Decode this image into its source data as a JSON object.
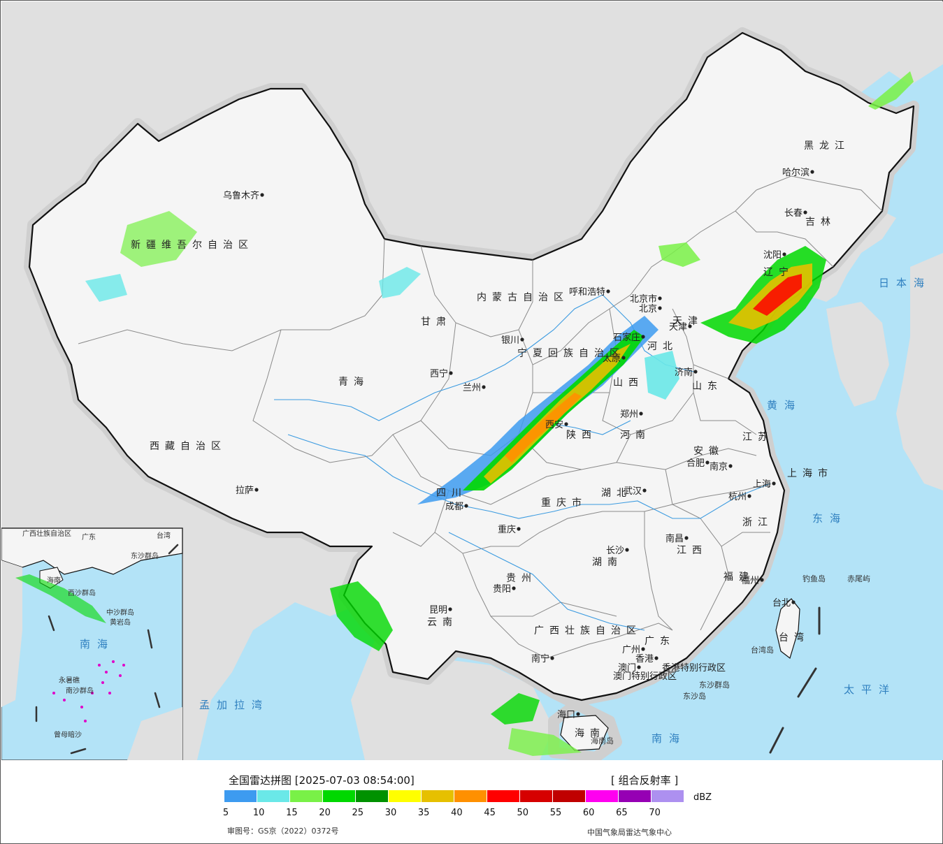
{
  "map": {
    "provinces": [
      {
        "name": "新疆维吾尔自治区"
      },
      {
        "name": "西藏自治区"
      },
      {
        "name": "青海"
      },
      {
        "name": "甘肃"
      },
      {
        "name": "内蒙古自治区"
      },
      {
        "name": "黑龙江"
      },
      {
        "name": "吉林"
      },
      {
        "name": "辽宁"
      },
      {
        "name": "河北"
      },
      {
        "name": "山西"
      },
      {
        "name": "陕西"
      },
      {
        "name": "山东"
      },
      {
        "name": "河南"
      },
      {
        "name": "江苏"
      },
      {
        "name": "安徽"
      },
      {
        "name": "湖北"
      },
      {
        "name": "四川"
      },
      {
        "name": "重庆市"
      },
      {
        "name": "湖南"
      },
      {
        "name": "江西"
      },
      {
        "name": "浙江"
      },
      {
        "name": "福建"
      },
      {
        "name": "贵州"
      },
      {
        "name": "云南"
      },
      {
        "name": "广西壮族自治区"
      },
      {
        "name": "广东"
      },
      {
        "name": "海南"
      },
      {
        "name": "台湾"
      },
      {
        "name": "上海市"
      },
      {
        "name": "宁夏回族自治区"
      },
      {
        "name": "天津"
      }
    ],
    "cities": [
      {
        "name": "乌鲁木齐"
      },
      {
        "name": "拉萨"
      },
      {
        "name": "西宁"
      },
      {
        "name": "兰州"
      },
      {
        "name": "银川"
      },
      {
        "name": "呼和浩特"
      },
      {
        "name": "哈尔滨"
      },
      {
        "name": "长春"
      },
      {
        "name": "沈阳"
      },
      {
        "name": "北京"
      },
      {
        "name": "北京市"
      },
      {
        "name": "天津"
      },
      {
        "name": "石家庄"
      },
      {
        "name": "太原"
      },
      {
        "name": "济南"
      },
      {
        "name": "郑州"
      },
      {
        "name": "西安"
      },
      {
        "name": "合肥"
      },
      {
        "name": "南京"
      },
      {
        "name": "上海"
      },
      {
        "name": "杭州"
      },
      {
        "name": "武汉"
      },
      {
        "name": "成都"
      },
      {
        "name": "重庆"
      },
      {
        "name": "长沙"
      },
      {
        "name": "南昌"
      },
      {
        "name": "福州"
      },
      {
        "name": "台北"
      },
      {
        "name": "贵阳"
      },
      {
        "name": "昆明"
      },
      {
        "name": "南宁"
      },
      {
        "name": "广州"
      },
      {
        "name": "香港"
      },
      {
        "name": "澳门"
      },
      {
        "name": "海口"
      }
    ],
    "special_regions": [
      "香港特别行政区",
      "澳门特别行政区"
    ],
    "seas": [
      "黄海",
      "东海",
      "南海",
      "日本海",
      "太平洋",
      "孟加拉湾"
    ],
    "islands": [
      "钓鱼岛",
      "赤尾屿",
      "台湾岛",
      "东沙群岛",
      "东沙岛",
      "海南岛"
    ],
    "inset": {
      "labels": [
        "南海",
        "中沙群岛",
        "黄岩岛",
        "西沙群岛",
        "永暑礁",
        "南沙群岛",
        "曾母暗沙",
        "东沙群岛",
        "台湾",
        "海南",
        "广东",
        "广西壮族自治区"
      ]
    },
    "colors": {
      "sea": "#b3e3f7",
      "land_china": "#f5f5f5",
      "land_foreign": "#e0e0e0",
      "border": "#111111",
      "river": "#3c9be0"
    }
  },
  "legend": {
    "title": "全国雷达拼图 [2025-07-03 08:54:00]",
    "product": "[ 组合反射率 ]",
    "unit": "dBZ",
    "ticks": [
      "5",
      "10",
      "15",
      "20",
      "25",
      "30",
      "35",
      "40",
      "45",
      "50",
      "55",
      "60",
      "65",
      "70"
    ],
    "colors": [
      "#3d9bf0",
      "#6ae8e8",
      "#79f147",
      "#00d800",
      "#009100",
      "#ffff00",
      "#e6c000",
      "#ff9000",
      "#ff0000",
      "#d60000",
      "#c00000",
      "#ff00f0",
      "#9600b4",
      "#ad90f0"
    ],
    "approval_number": "审图号：GS京（2022）0372号",
    "source": "中国气象局雷达气象中心"
  }
}
